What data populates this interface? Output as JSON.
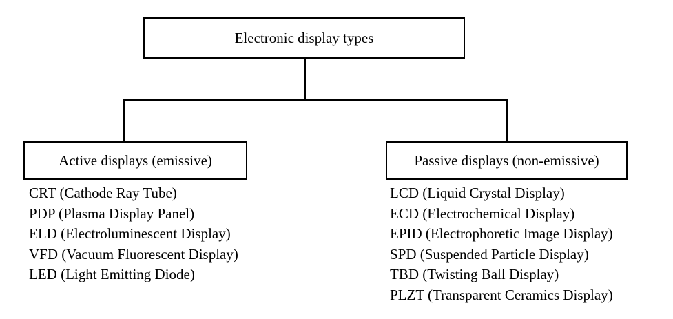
{
  "root": {
    "label": "Electronic display types"
  },
  "branches": {
    "active": {
      "label": "Active displays (emissive)",
      "items": [
        "CRT (Cathode Ray Tube)",
        "PDP (Plasma Display Panel)",
        "ELD (Electroluminescent Display)",
        "VFD (Vacuum Fluorescent Display)",
        "LED (Light Emitting Diode)"
      ]
    },
    "passive": {
      "label": "Passive displays (non-emissive)",
      "items": [
        "LCD (Liquid Crystal Display)",
        "ECD (Electrochemical Display)",
        "EPID (Electrophoretic Image Display)",
        "SPD (Suspended Particle Display)",
        "TBD (Twisting Ball Display)",
        "PLZT (Transparent Ceramics Display)"
      ]
    }
  }
}
